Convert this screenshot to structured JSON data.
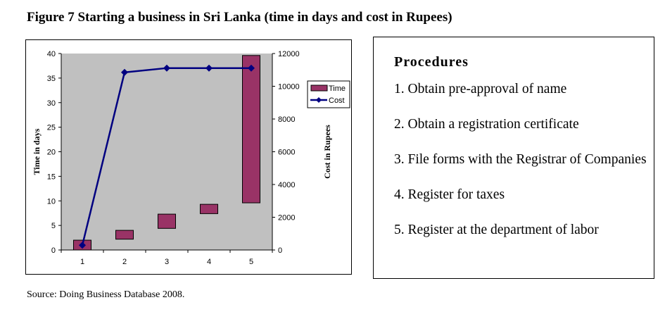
{
  "title": "Figure 7  Starting a business in Sri Lanka (time in days and cost in Rupees)",
  "chart_data": {
    "type": "bar",
    "categories": [
      "1",
      "2",
      "3",
      "4",
      "5"
    ],
    "series": [
      {
        "name": "Time",
        "kind": "floating-bar",
        "axis": "left",
        "color": "#993366",
        "ranges": [
          [
            0,
            2
          ],
          [
            2.2,
            4
          ],
          [
            4.4,
            7.3
          ],
          [
            7.4,
            9.3
          ],
          [
            9.6,
            39.6
          ]
        ]
      },
      {
        "name": "Cost",
        "kind": "line",
        "axis": "right",
        "color": "#000080",
        "values": [
          290,
          10850,
          11110,
          11110,
          11110
        ]
      }
    ],
    "ylabel": "Time in days",
    "y2label": "Cost in Rupees",
    "ylim": [
      0,
      40
    ],
    "yticks": [
      0,
      5,
      10,
      15,
      20,
      25,
      30,
      35,
      40
    ],
    "y2lim": [
      0,
      12000
    ],
    "y2ticks": [
      0,
      2000,
      4000,
      6000,
      8000,
      10000,
      12000
    ],
    "legend": "right",
    "plot_bg": "#c0c0c0"
  },
  "procedures": {
    "heading": "Procedures",
    "items": [
      "1. Obtain pre-approval of name",
      "2. Obtain a registration certificate",
      "3. File forms with the Registrar of Companies",
      "4. Register for taxes",
      "5. Register at the department of labor"
    ]
  },
  "source": "Source: Doing Business Database 2008."
}
